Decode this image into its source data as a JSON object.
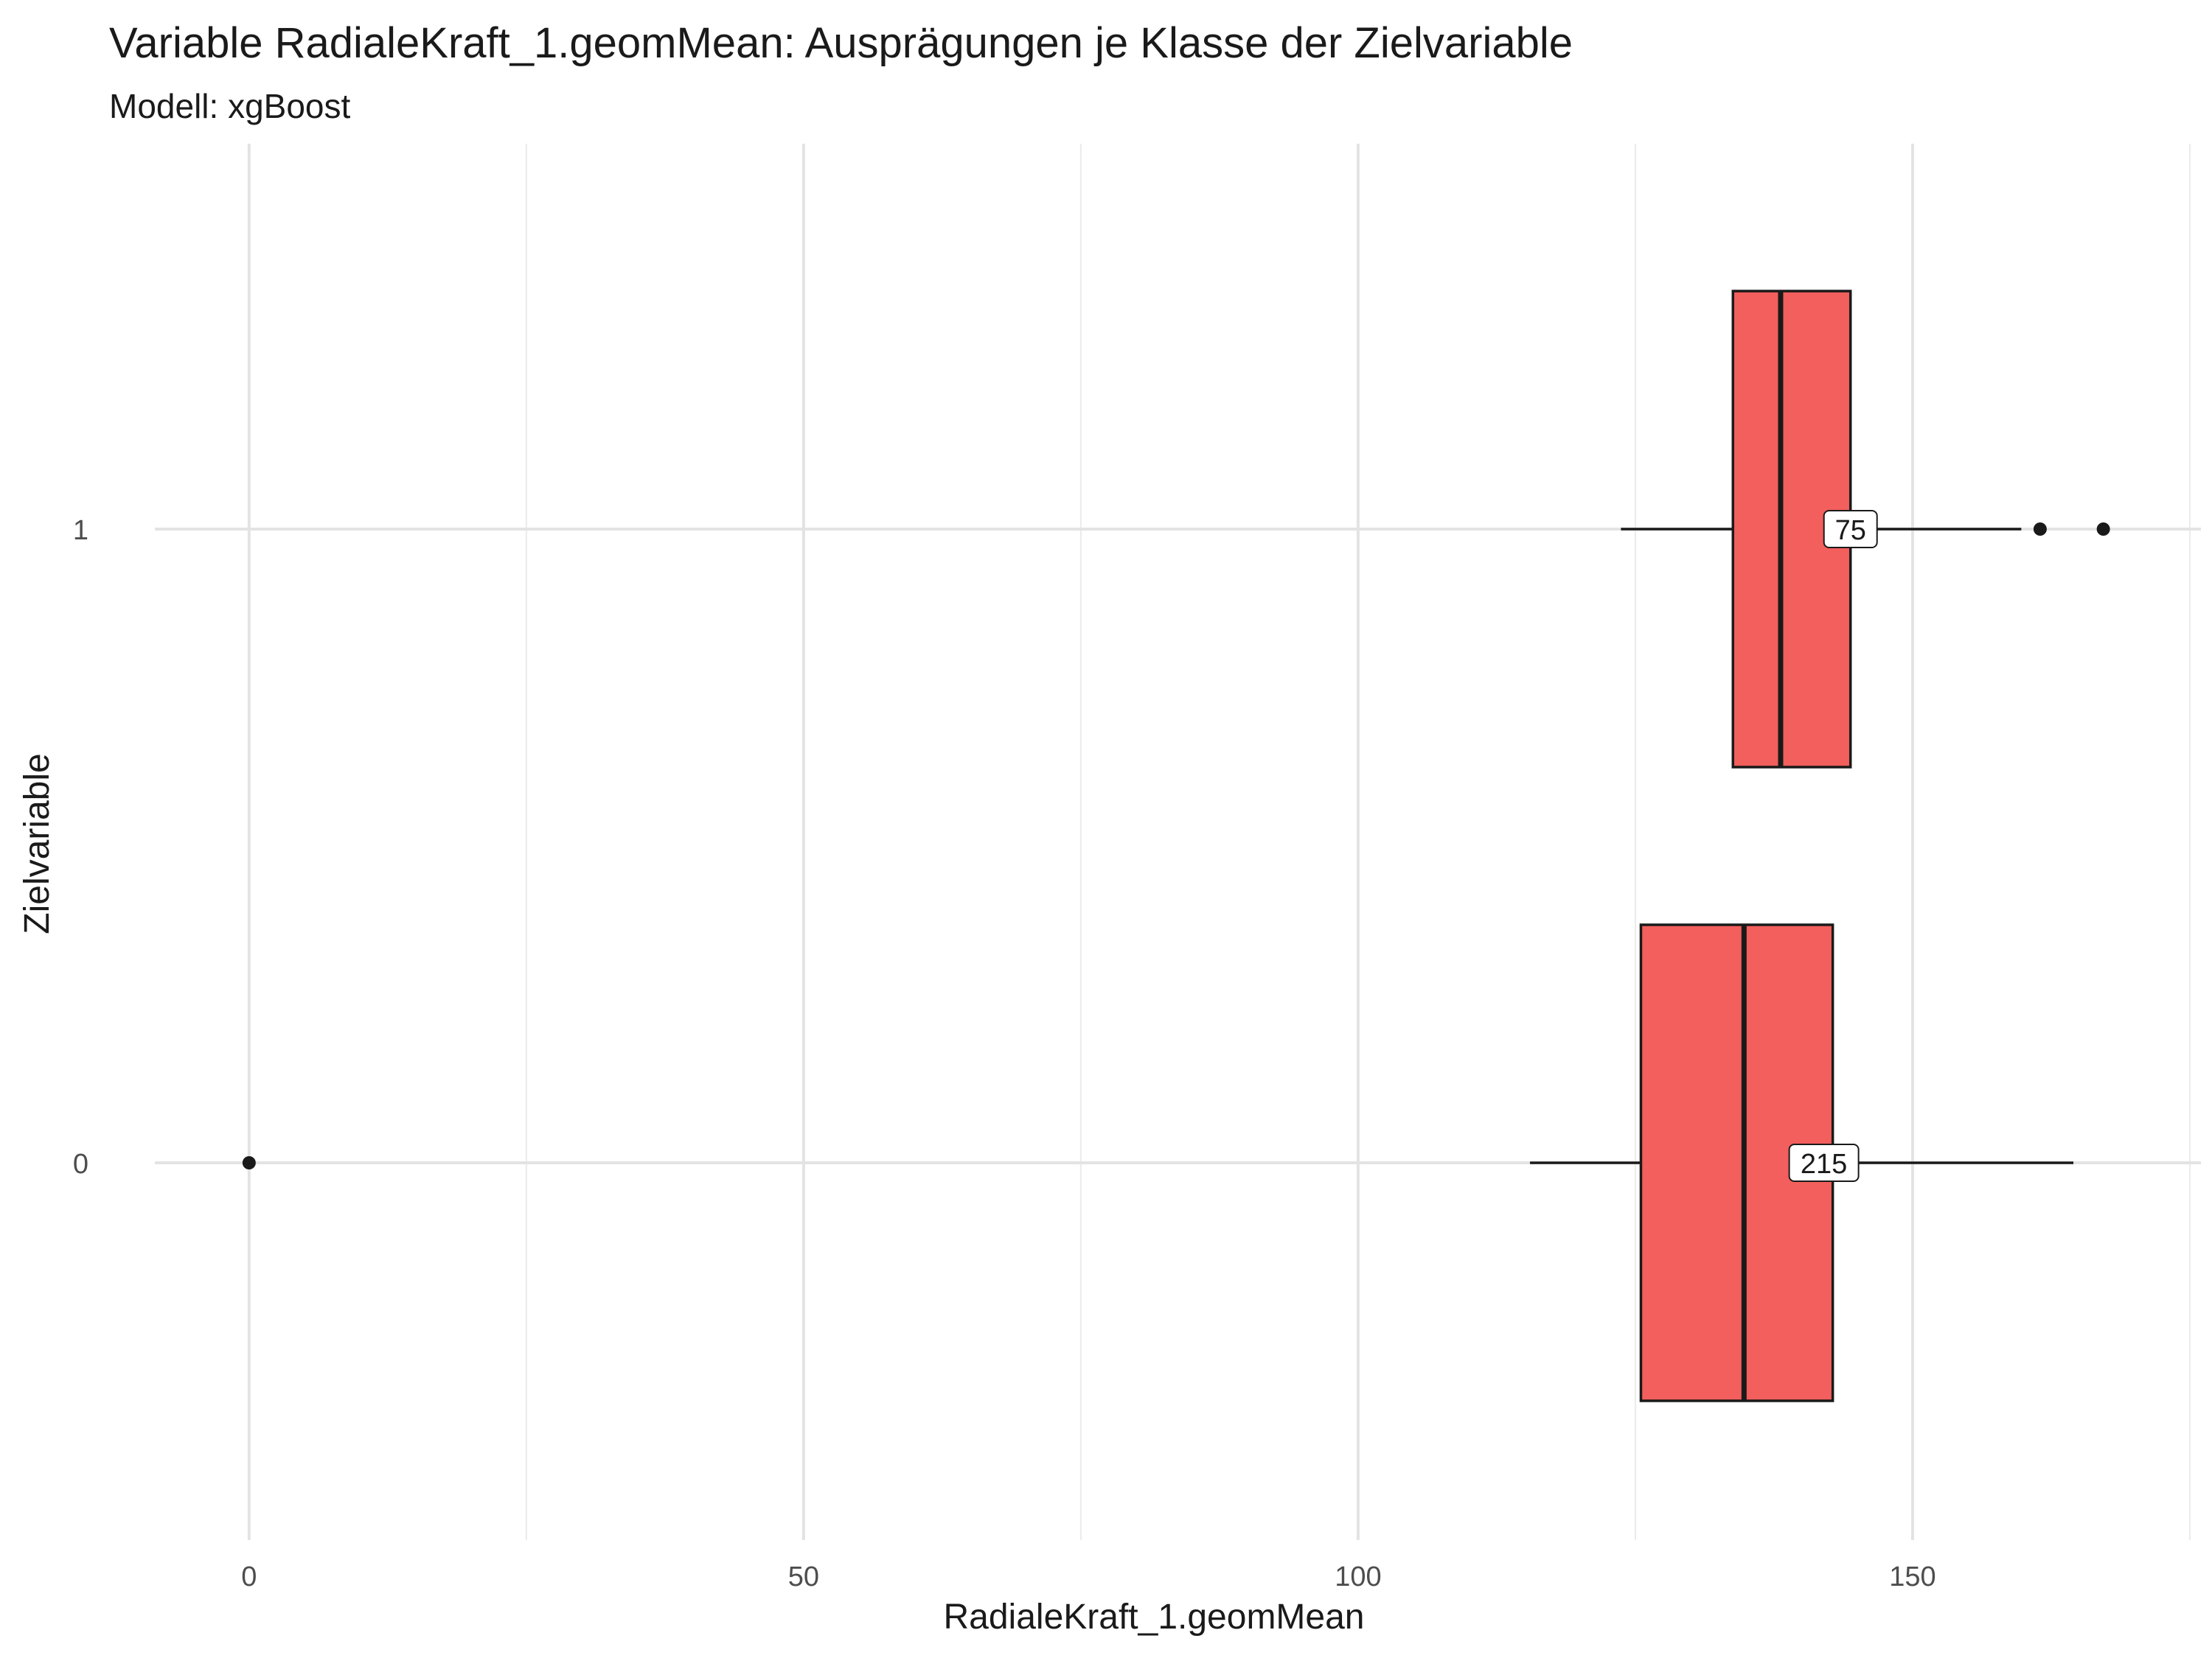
{
  "chart_data": {
    "type": "boxplot",
    "orientation": "horizontal",
    "title": "Variable RadialeKraft_1.geomMean: Ausprägungen je Klasse der Zielvariable",
    "subtitle": "Modell: xgBoost",
    "xlabel": "RadialeKraft_1.geomMean",
    "ylabel": "Zielvariable",
    "xlim": [
      -8.5,
      176
    ],
    "x_ticks": [
      0,
      50,
      100,
      150
    ],
    "x_minor_ticks": [
      25,
      75,
      125,
      175
    ],
    "grid": true,
    "legend": "none",
    "fill_color": "#F25F5C",
    "categories": [
      "0",
      "1"
    ],
    "series": [
      {
        "category": "0",
        "whisker_low": 115.5,
        "q1": 125.5,
        "median": 134.8,
        "q3": 142.8,
        "whisker_high": 164.5,
        "outliers": [
          0
        ],
        "count_label": "215",
        "count_label_x": 142
      },
      {
        "category": "1",
        "whisker_low": 123.7,
        "q1": 133.8,
        "median": 138.1,
        "q3": 144.4,
        "whisker_high": 159.8,
        "outliers": [
          161.5,
          167.2
        ],
        "count_label": "75",
        "count_label_x": 144.4
      }
    ]
  }
}
